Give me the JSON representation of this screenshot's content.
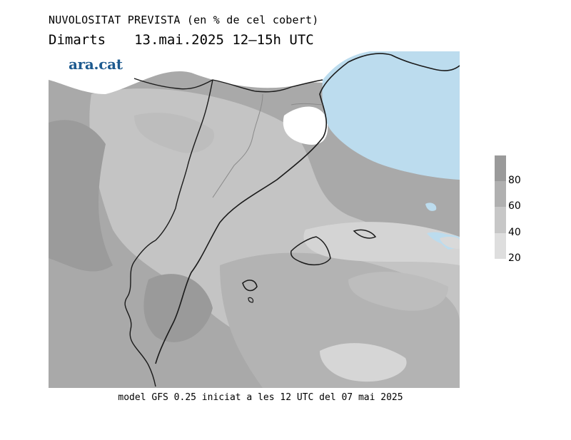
{
  "header": {
    "title": "NUVOLOSITAT PREVISTA (en % de cel cobert)",
    "day": "Dimarts",
    "datetime": "13.mai.2025 12–15h UTC"
  },
  "logo": {
    "text": "ara.cat"
  },
  "footer": {
    "text": "model GFS 0.25 iniciat a les 12 UTC del 07 mai 2025"
  },
  "legend": {
    "ticks": [
      "80",
      "60",
      "40",
      "20"
    ],
    "colors": [
      "#9a9a9a",
      "#b0b0b0",
      "#c7c7c7",
      "#dedede"
    ]
  },
  "colors": {
    "sea_clear": "#bcdcee",
    "land_border": "#1a1a1a"
  }
}
